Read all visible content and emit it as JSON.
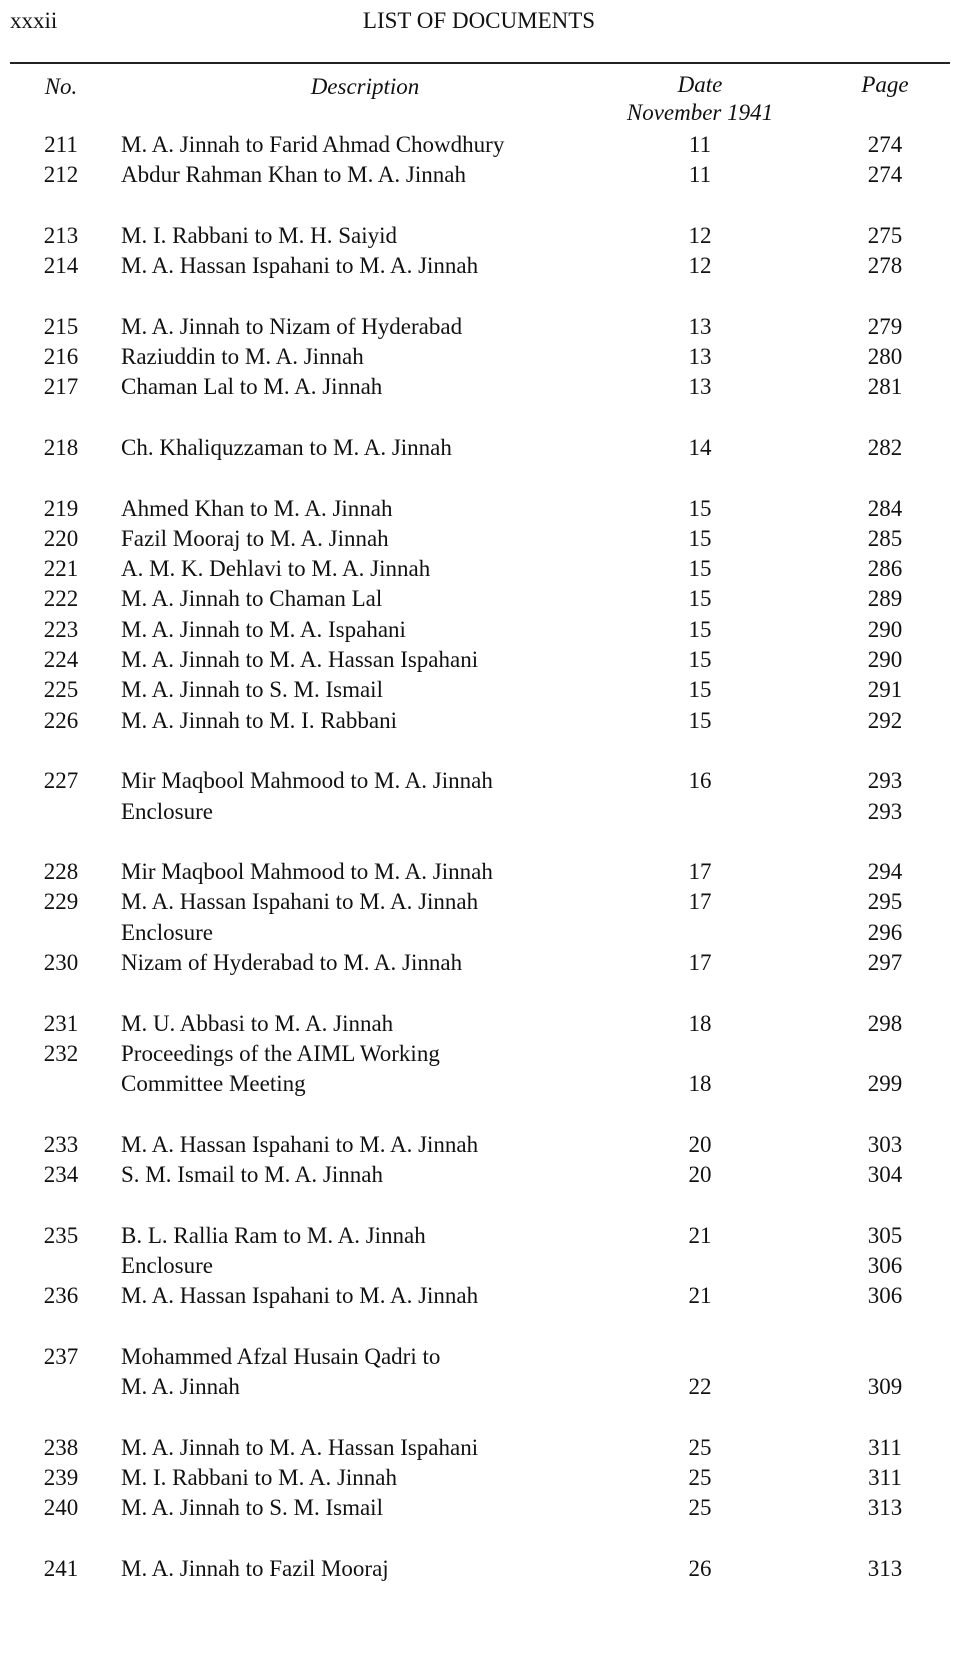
{
  "header": {
    "page_number": "xxxii",
    "title": "LIST OF DOCUMENTS"
  },
  "columns": {
    "no": "No.",
    "description": "Description",
    "date": "Date",
    "date_sub": "November 1941",
    "page": "Page"
  },
  "groups": [
    [
      {
        "no": "211",
        "lines": [
          "M. A. Jinnah to Farid Ahmad Chowdhury"
        ],
        "date": "11",
        "page": "274"
      },
      {
        "no": "212",
        "lines": [
          "Abdur Rahman Khan to M. A. Jinnah"
        ],
        "date": "11",
        "page": "274"
      }
    ],
    [
      {
        "no": "213",
        "lines": [
          "M. I. Rabbani to M. H. Saiyid"
        ],
        "date": "12",
        "page": "275"
      },
      {
        "no": "214",
        "lines": [
          "M. A. Hassan Ispahani to M. A. Jinnah"
        ],
        "date": "12",
        "page": "278"
      }
    ],
    [
      {
        "no": "215",
        "lines": [
          "M. A. Jinnah to Nizam of Hyderabad"
        ],
        "date": "13",
        "page": "279"
      },
      {
        "no": "216",
        "lines": [
          "Raziuddin to M. A. Jinnah"
        ],
        "date": "13",
        "page": "280"
      },
      {
        "no": "217",
        "lines": [
          "Chaman Lal to M. A. Jinnah"
        ],
        "date": "13",
        "page": "281"
      }
    ],
    [
      {
        "no": "218",
        "lines": [
          "Ch. Khaliquzzaman to M. A. Jinnah"
        ],
        "date": "14",
        "page": "282"
      }
    ],
    [
      {
        "no": "219",
        "lines": [
          "Ahmed Khan to M. A. Jinnah"
        ],
        "date": "15",
        "page": "284"
      },
      {
        "no": "220",
        "lines": [
          "Fazil Mooraj to M. A. Jinnah"
        ],
        "date": "15",
        "page": "285"
      },
      {
        "no": "221",
        "lines": [
          "A. M. K. Dehlavi to M. A. Jinnah"
        ],
        "date": "15",
        "page": "286"
      },
      {
        "no": "222",
        "lines": [
          "M. A. Jinnah to Chaman Lal"
        ],
        "date": "15",
        "page": "289"
      },
      {
        "no": "223",
        "lines": [
          "M. A. Jinnah to M. A. Ispahani"
        ],
        "date": "15",
        "page": "290"
      },
      {
        "no": "224",
        "lines": [
          "M. A. Jinnah to M.  A. Hassan Ispahani"
        ],
        "date": "15",
        "page": "290"
      },
      {
        "no": "225",
        "lines": [
          "M. A. Jinnah to S. M. Ismail"
        ],
        "date": "15",
        "page": "291"
      },
      {
        "no": "226",
        "lines": [
          "M. A. Jinnah to M. I. Rabbani"
        ],
        "date": "15",
        "page": "292"
      }
    ],
    [
      {
        "no": "227",
        "lines": [
          "Mir Maqbool Mahmood to M. A. Jinnah"
        ],
        "date": "16",
        "page": "293"
      },
      {
        "lines": [
          "Enclosure"
        ],
        "page": "293"
      }
    ],
    [
      {
        "no": "228",
        "lines": [
          "Mir Maqbool Mahmood to M. A. Jinnah"
        ],
        "date": "17",
        "page": "294"
      },
      {
        "no": "229",
        "lines": [
          "M. A. Hassan Ispahani to M. A. Jinnah"
        ],
        "date": "17",
        "page": "295"
      },
      {
        "lines": [
          "Enclosure"
        ],
        "page": "296"
      },
      {
        "no": "230",
        "lines": [
          "Nizam of Hyderabad to M. A. Jinnah"
        ],
        "date": "17",
        "page": "297"
      }
    ],
    [
      {
        "no": "231",
        "lines": [
          "M. U. Abbasi to M. A. Jinnah"
        ],
        "date": "18",
        "page": "298"
      },
      {
        "no": "232",
        "lines": [
          "Proceedings of the AIML Working",
          "Committee Meeting"
        ],
        "date": "18",
        "page": "299"
      }
    ],
    [
      {
        "no": "233",
        "lines": [
          "M. A. Hassan Ispahani to M. A. Jinnah"
        ],
        "date": "20",
        "page": "303"
      },
      {
        "no": "234",
        "lines": [
          "S. M. Ismail to M. A. Jinnah"
        ],
        "date": "20",
        "page": "304"
      }
    ],
    [
      {
        "no": "235",
        "lines": [
          "B. L. Rallia Ram to M. A. Jinnah"
        ],
        "date": "21",
        "page": "305"
      },
      {
        "lines": [
          "Enclosure"
        ],
        "page": "306"
      },
      {
        "no": "236",
        "lines": [
          "M. A. Hassan Ispahani to M. A. Jinnah"
        ],
        "date": "21",
        "page": "306"
      }
    ],
    [
      {
        "no": "237",
        "lines": [
          "Mohammed Afzal Husain Qadri to",
          "M. A. Jinnah"
        ],
        "date": "22",
        "page": "309"
      }
    ],
    [
      {
        "no": "238",
        "lines": [
          "M. A. Jinnah to M. A. Hassan Ispahani"
        ],
        "date": "25",
        "page": "311"
      },
      {
        "no": "239",
        "lines": [
          "M. I. Rabbani to M. A. Jinnah"
        ],
        "date": "25",
        "page": "311"
      },
      {
        "no": "240",
        "lines": [
          "M. A. Jinnah to S. M. Ismail"
        ],
        "date": "25",
        "page": "313"
      }
    ],
    [
      {
        "no": "241",
        "lines": [
          "M. A. Jinnah to Fazil Mooraj"
        ],
        "date": "26",
        "page": "313"
      }
    ]
  ]
}
